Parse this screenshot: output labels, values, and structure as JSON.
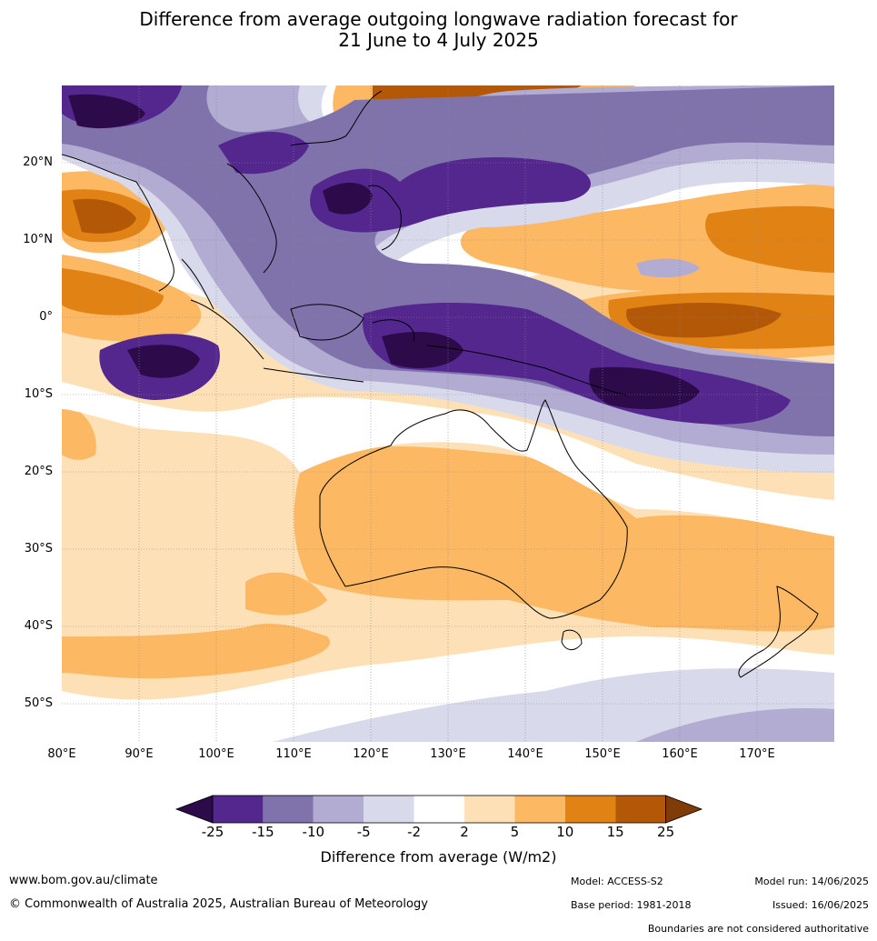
{
  "title_line1": "Difference from average outgoing longwave radiation forecast for",
  "title_line2": "21 June to 4 July 2025",
  "map": {
    "lon_range": [
      80,
      180
    ],
    "lat_range": [
      -55,
      30
    ],
    "lat_ticks": [
      "20°N",
      "10°N",
      "0°",
      "10°S",
      "20°S",
      "30°S",
      "40°S",
      "50°S"
    ],
    "lon_ticks": [
      "80°E",
      "90°E",
      "100°E",
      "110°E",
      "120°E",
      "130°E",
      "140°E",
      "150°E",
      "160°E",
      "170°E"
    ]
  },
  "colorbar": {
    "ticks": [
      "-25",
      "-15",
      "-10",
      "-5",
      "-2",
      "2",
      "5",
      "10",
      "15",
      "25"
    ],
    "colors": {
      "lt_minus25": "#2d0a4a",
      "minus25_minus15": "#54278f",
      "minus15_minus10": "#8073ac",
      "minus10_minus5": "#b2abd2",
      "minus5_minus2": "#d8daeb",
      "minus2_2": "#ffffff",
      "p2_5": "#fee0b6",
      "p5_10": "#fdb863",
      "p10_15": "#e08214",
      "p15_25": "#b35806",
      "gt_25": "#7f3b08"
    },
    "label": "Difference from average (W/m2)"
  },
  "footer": {
    "website": "www.bom.gov.au/climate",
    "copyright": "© Commonwealth of Australia 2025, Australian Bureau of Meteorology",
    "model": "Model: ACCESS-S2",
    "base_period": "Base period: 1981-2018",
    "model_run": "Model run: 14/06/2025",
    "issued": "Issued: 16/06/2025",
    "disclaimer": "Boundaries are not considered authoritative"
  }
}
